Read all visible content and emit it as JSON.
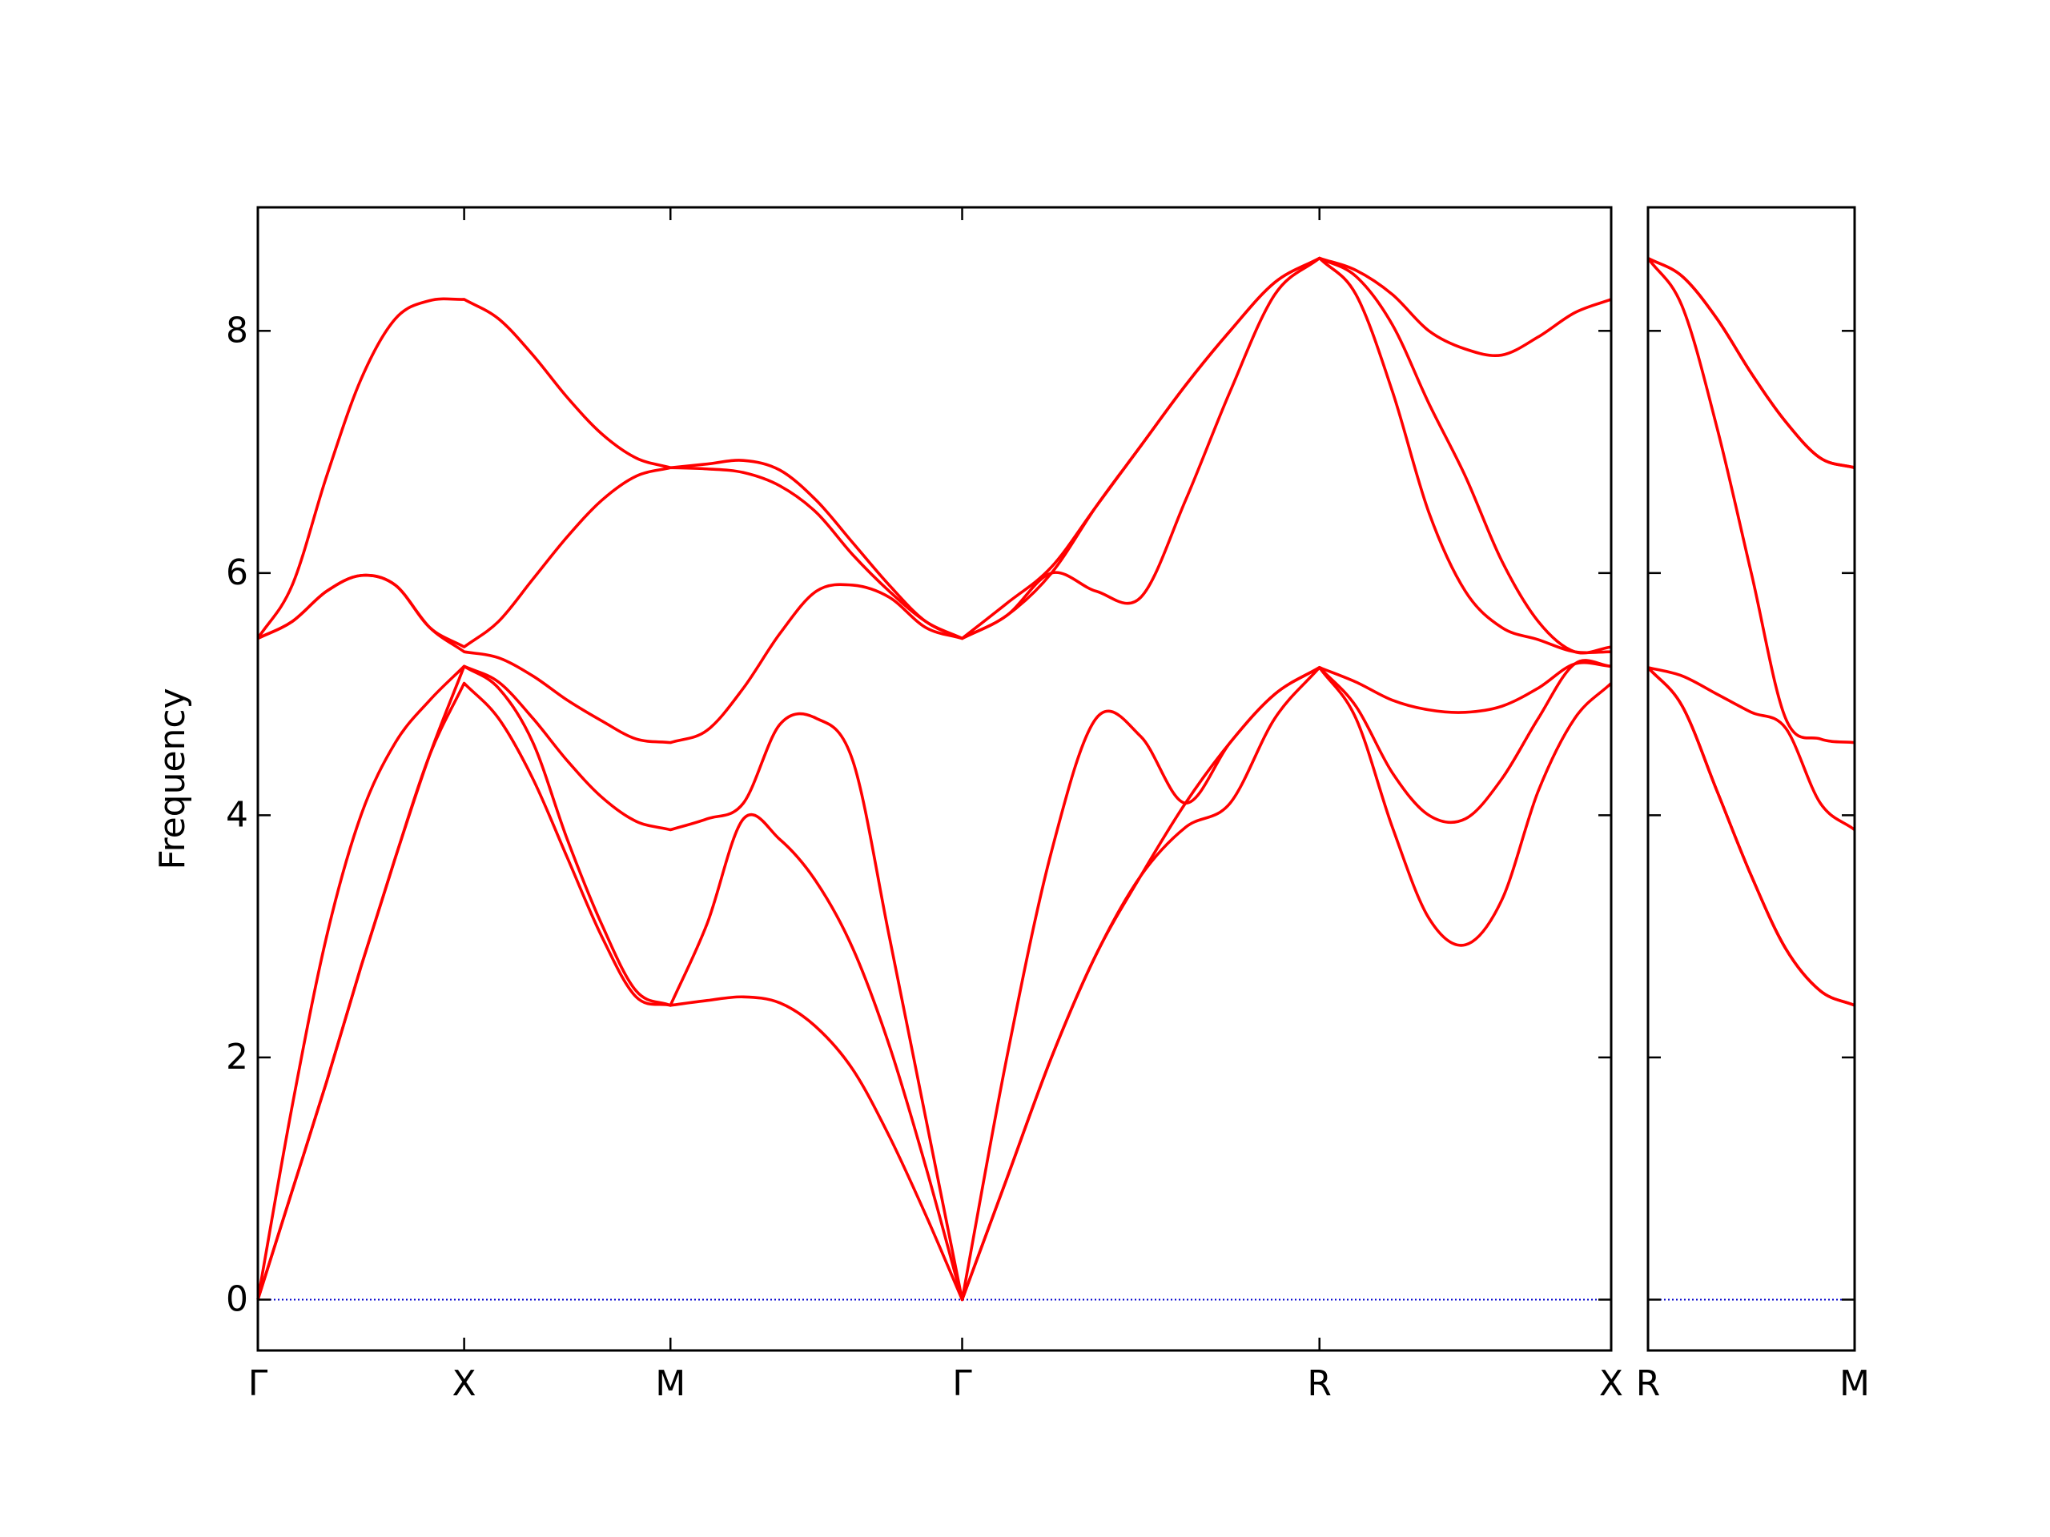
{
  "chart_data": [
    {
      "type": "line",
      "y_label": "Frequency",
      "x": [
        0,
        0.0833,
        0.1667,
        0.25,
        0.3333,
        0.4167,
        0.5,
        0.5833,
        0.6667,
        0.75,
        0.8333,
        0.9167,
        1.0,
        1.0884,
        1.1768,
        1.2652,
        1.3536,
        1.442,
        1.5303,
        1.6187,
        1.707,
        1.8153,
        1.9235,
        2.0318,
        2.14,
        2.2483,
        2.3565,
        2.4648,
        2.573,
        2.6614,
        2.7498,
        2.8382,
        2.9265,
        3.0149,
        3.1033,
        3.1917,
        3.28
      ],
      "series": [
        {
          "color": "#ff0000",
          "values": [
            0,
            0.9,
            1.8,
            2.75,
            3.65,
            4.5,
            5.09,
            4.8,
            4.3,
            3.65,
            3.0,
            2.5,
            2.43,
            2.47,
            2.5,
            2.45,
            2.25,
            1.9,
            1.35,
            0.7,
            0,
            1.0,
            2.0,
            2.85,
            3.5,
            3.9,
            4.1,
            4.8,
            5.22,
            4.8,
            3.9,
            3.15,
            2.93,
            3.3,
            4.2,
            4.8,
            5.09
          ]
        },
        {
          "color": "#ff0000",
          "values": [
            0,
            0.9,
            1.8,
            2.75,
            3.65,
            4.5,
            5.23,
            5.05,
            4.6,
            3.8,
            3.1,
            2.55,
            2.43,
            3.1,
            3.97,
            3.8,
            3.45,
            2.9,
            2.1,
            1.1,
            0,
            1.0,
            2.0,
            2.85,
            3.5,
            4.1,
            4.6,
            5.0,
            5.22,
            4.9,
            4.35,
            4.0,
            3.97,
            4.3,
            4.8,
            5.25,
            5.23
          ]
        },
        {
          "color": "#ff0000",
          "values": [
            0,
            1.6,
            3.0,
            4.0,
            4.6,
            4.95,
            5.23,
            5.1,
            4.8,
            4.45,
            4.15,
            3.95,
            3.88,
            3.97,
            4.1,
            4.75,
            4.8,
            4.45,
            3.0,
            1.5,
            0,
            2.0,
            3.7,
            4.8,
            4.65,
            4.1,
            4.6,
            5.0,
            5.22,
            5.1,
            4.95,
            4.87,
            4.85,
            4.9,
            5.05,
            5.25,
            5.23
          ]
        },
        {
          "color": "#ff0000",
          "values": [
            5.46,
            5.6,
            5.85,
            5.98,
            5.9,
            5.55,
            5.35,
            5.3,
            5.15,
            4.95,
            4.78,
            4.63,
            4.6,
            4.7,
            5.05,
            5.5,
            5.85,
            5.9,
            5.8,
            5.55,
            5.46,
            5.65,
            6.0,
            5.85,
            5.8,
            6.6,
            7.5,
            8.3,
            8.6,
            8.3,
            7.5,
            6.5,
            5.85,
            5.55,
            5.45,
            5.35,
            5.35
          ]
        },
        {
          "color": "#ff0000",
          "values": [
            5.46,
            5.6,
            5.85,
            5.98,
            5.9,
            5.55,
            5.39,
            5.6,
            5.95,
            6.3,
            6.6,
            6.8,
            6.87,
            6.86,
            6.83,
            6.72,
            6.5,
            6.15,
            5.85,
            5.6,
            5.46,
            5.65,
            6.0,
            6.55,
            7.05,
            7.55,
            8.0,
            8.4,
            8.6,
            8.45,
            8.05,
            7.4,
            6.8,
            6.1,
            5.6,
            5.35,
            5.39
          ]
        },
        {
          "color": "#ff0000",
          "values": [
            5.46,
            5.9,
            6.8,
            7.6,
            8.1,
            8.25,
            8.26,
            8.1,
            7.8,
            7.45,
            7.15,
            6.95,
            6.87,
            6.9,
            6.93,
            6.85,
            6.6,
            6.25,
            5.9,
            5.6,
            5.46,
            5.75,
            6.05,
            6.55,
            7.05,
            7.55,
            8.0,
            8.4,
            8.6,
            8.5,
            8.3,
            8.0,
            7.85,
            7.8,
            7.95,
            8.15,
            8.26
          ]
        }
      ],
      "xlim": [
        0,
        3.28
      ],
      "ylim": [
        -0.42,
        9.02
      ],
      "xticks": [
        {
          "value": 0,
          "label": "Γ"
        },
        {
          "value": 0.5,
          "label": "X"
        },
        {
          "value": 1.0,
          "label": "M"
        },
        {
          "value": 1.707,
          "label": "Γ"
        },
        {
          "value": 2.573,
          "label": "R"
        },
        {
          "value": 3.28,
          "label": "X"
        }
      ],
      "yticks": [
        0,
        2,
        4,
        6,
        8
      ],
      "ytick_labels": true,
      "hlines": [
        {
          "y": 0,
          "color": "#0000cc",
          "style": "dotted"
        }
      ]
    },
    {
      "type": "line",
      "x": [
        3.28,
        3.363,
        3.447,
        3.53,
        3.613,
        3.697,
        3.78
      ],
      "series": [
        {
          "color": "#ff0000",
          "values": [
            5.22,
            4.9,
            4.2,
            3.5,
            2.9,
            2.55,
            2.43
          ]
        },
        {
          "color": "#ff0000",
          "values": [
            5.22,
            4.9,
            4.2,
            3.5,
            2.9,
            2.55,
            2.43
          ]
        },
        {
          "color": "#ff0000",
          "values": [
            5.22,
            5.15,
            5.0,
            4.85,
            4.72,
            4.1,
            3.88
          ]
        },
        {
          "color": "#ff0000",
          "values": [
            8.6,
            8.2,
            7.2,
            6.0,
            4.8,
            4.63,
            4.6
          ]
        },
        {
          "color": "#ff0000",
          "values": [
            8.6,
            8.45,
            8.1,
            7.65,
            7.25,
            6.95,
            6.87
          ]
        },
        {
          "color": "#ff0000",
          "values": [
            8.6,
            8.45,
            8.1,
            7.65,
            7.25,
            6.95,
            6.87
          ]
        }
      ],
      "xlim": [
        3.28,
        3.78
      ],
      "ylim": [
        -0.42,
        9.02
      ],
      "xticks": [
        {
          "value": 3.28,
          "label": "R"
        },
        {
          "value": 3.78,
          "label": "M"
        }
      ],
      "yticks": [
        0,
        2,
        4,
        6,
        8
      ],
      "ytick_labels": false,
      "hlines": [
        {
          "y": 0,
          "color": "#0000cc",
          "style": "dotted"
        }
      ]
    }
  ]
}
